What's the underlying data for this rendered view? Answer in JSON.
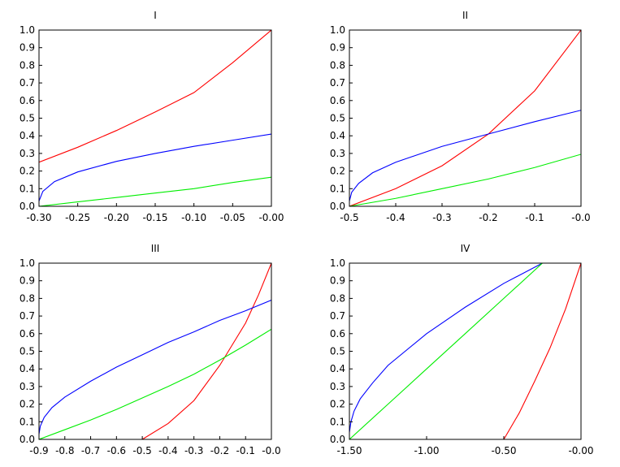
{
  "chart_data": [
    {
      "type": "line",
      "title": "I",
      "xlim": [
        -0.3,
        0.0
      ],
      "ylim": [
        0.0,
        1.0
      ],
      "x_ticks": [
        "-0.30",
        "-0.25",
        "-0.20",
        "-0.15",
        "-0.10",
        "-0.05",
        "-0.00"
      ],
      "x_tick_values": [
        -0.3,
        -0.25,
        -0.2,
        -0.15,
        -0.1,
        -0.05,
        0.0
      ],
      "y_ticks": [
        "0.0",
        "0.1",
        "0.2",
        "0.3",
        "0.4",
        "0.5",
        "0.6",
        "0.7",
        "0.8",
        "0.9",
        "1.0"
      ],
      "y_tick_values": [
        0,
        0.1,
        0.2,
        0.3,
        0.4,
        0.5,
        0.6,
        0.7,
        0.8,
        0.9,
        1.0
      ],
      "series": [
        {
          "color": "#ff0000",
          "x": [
            -0.3,
            -0.25,
            -0.2,
            -0.15,
            -0.1,
            -0.05,
            0.0
          ],
          "y": [
            0.25,
            0.335,
            0.43,
            0.535,
            0.645,
            0.815,
            1.0
          ]
        },
        {
          "color": "#0000ff",
          "x": [
            -0.3,
            -0.295,
            -0.28,
            -0.25,
            -0.2,
            -0.15,
            -0.1,
            -0.05,
            0.0
          ],
          "y": [
            0.03,
            0.085,
            0.14,
            0.195,
            0.255,
            0.3,
            0.34,
            0.375,
            0.41
          ]
        },
        {
          "color": "#00ee00",
          "x": [
            -0.3,
            -0.25,
            -0.2,
            -0.15,
            -0.1,
            -0.05,
            0.0
          ],
          "y": [
            0.0,
            0.025,
            0.05,
            0.075,
            0.1,
            0.135,
            0.165
          ]
        }
      ]
    },
    {
      "type": "line",
      "title": "II",
      "xlim": [
        -0.5,
        0.0
      ],
      "ylim": [
        0.0,
        1.0
      ],
      "x_ticks": [
        "-0.5",
        "-0.4",
        "-0.3",
        "-0.2",
        "-0.1",
        "-0.0"
      ],
      "x_tick_values": [
        -0.5,
        -0.4,
        -0.3,
        -0.2,
        -0.1,
        0.0
      ],
      "y_ticks": [
        "0.0",
        "0.1",
        "0.2",
        "0.3",
        "0.4",
        "0.5",
        "0.6",
        "0.7",
        "0.8",
        "0.9",
        "1.0"
      ],
      "y_tick_values": [
        0,
        0.1,
        0.2,
        0.3,
        0.4,
        0.5,
        0.6,
        0.7,
        0.8,
        0.9,
        1.0
      ],
      "series": [
        {
          "color": "#ff0000",
          "x": [
            -0.5,
            -0.4,
            -0.3,
            -0.2,
            -0.1,
            0.0
          ],
          "y": [
            0.0,
            0.1,
            0.23,
            0.41,
            0.655,
            1.0
          ]
        },
        {
          "color": "#0000ff",
          "x": [
            -0.5,
            -0.495,
            -0.48,
            -0.45,
            -0.4,
            -0.3,
            -0.2,
            -0.1,
            0.0
          ],
          "y": [
            0.03,
            0.08,
            0.13,
            0.19,
            0.25,
            0.34,
            0.41,
            0.48,
            0.545
          ]
        },
        {
          "color": "#00ee00",
          "x": [
            -0.5,
            -0.4,
            -0.3,
            -0.2,
            -0.1,
            0.0
          ],
          "y": [
            0.0,
            0.045,
            0.1,
            0.155,
            0.22,
            0.295
          ]
        }
      ]
    },
    {
      "type": "line",
      "title": "III",
      "xlim": [
        -0.9,
        0.0
      ],
      "ylim": [
        0.0,
        1.0
      ],
      "x_ticks": [
        "-0.9",
        "-0.8",
        "-0.7",
        "-0.6",
        "-0.5",
        "-0.4",
        "-0.3",
        "-0.2",
        "-0.1",
        "-0.0"
      ],
      "x_tick_values": [
        -0.9,
        -0.8,
        -0.7,
        -0.6,
        -0.5,
        -0.4,
        -0.3,
        -0.2,
        -0.1,
        0.0
      ],
      "y_ticks": [
        "0.0",
        "0.1",
        "0.2",
        "0.3",
        "0.4",
        "0.5",
        "0.6",
        "0.7",
        "0.8",
        "0.9",
        "1.0"
      ],
      "y_tick_values": [
        0,
        0.1,
        0.2,
        0.3,
        0.4,
        0.5,
        0.6,
        0.7,
        0.8,
        0.9,
        1.0
      ],
      "series": [
        {
          "color": "#ff0000",
          "x": [
            -0.5,
            -0.4,
            -0.3,
            -0.2,
            -0.1,
            -0.05,
            0.0
          ],
          "y": [
            0.0,
            0.09,
            0.22,
            0.42,
            0.66,
            0.82,
            1.0
          ]
        },
        {
          "color": "#0000ff",
          "x": [
            -0.9,
            -0.895,
            -0.88,
            -0.85,
            -0.8,
            -0.7,
            -0.6,
            -0.5,
            -0.4,
            -0.3,
            -0.2,
            -0.1,
            0.0
          ],
          "y": [
            0.03,
            0.075,
            0.125,
            0.18,
            0.24,
            0.33,
            0.41,
            0.48,
            0.55,
            0.61,
            0.675,
            0.73,
            0.79
          ]
        },
        {
          "color": "#00ee00",
          "x": [
            -0.9,
            -0.8,
            -0.7,
            -0.6,
            -0.5,
            -0.4,
            -0.3,
            -0.2,
            -0.1,
            0.0
          ],
          "y": [
            0.0,
            0.055,
            0.11,
            0.17,
            0.235,
            0.3,
            0.37,
            0.45,
            0.535,
            0.625
          ]
        }
      ]
    },
    {
      "type": "line",
      "title": "IV",
      "xlim": [
        -1.5,
        0.0
      ],
      "ylim": [
        0.0,
        1.0
      ],
      "x_ticks": [
        "-1.50",
        "-1.00",
        "-0.50",
        "-0.00"
      ],
      "x_tick_values": [
        -1.5,
        -1.0,
        -0.5,
        0.0
      ],
      "y_ticks": [
        "0.0",
        "0.1",
        "0.2",
        "0.3",
        "0.4",
        "0.5",
        "0.6",
        "0.7",
        "0.8",
        "0.9",
        "1.0"
      ],
      "y_tick_values": [
        0,
        0.1,
        0.2,
        0.3,
        0.4,
        0.5,
        0.6,
        0.7,
        0.8,
        0.9,
        1.0
      ],
      "series": [
        {
          "color": "#ff0000",
          "x": [
            -0.5,
            -0.4,
            -0.3,
            -0.2,
            -0.1,
            0.0
          ],
          "y": [
            0.0,
            0.15,
            0.33,
            0.52,
            0.74,
            1.0
          ]
        },
        {
          "color": "#0000ff",
          "x": [
            -1.5,
            -1.49,
            -1.47,
            -1.43,
            -1.35,
            -1.25,
            -1.0,
            -0.75,
            -0.5,
            -0.25
          ],
          "y": [
            0.04,
            0.1,
            0.16,
            0.23,
            0.32,
            0.42,
            0.6,
            0.75,
            0.885,
            1.0
          ]
        },
        {
          "color": "#00ee00",
          "x": [
            -1.5,
            -1.25,
            -1.0,
            -0.75,
            -0.5,
            -0.25
          ],
          "y": [
            0.0,
            0.2,
            0.4,
            0.6,
            0.8,
            1.0
          ]
        }
      ]
    }
  ]
}
